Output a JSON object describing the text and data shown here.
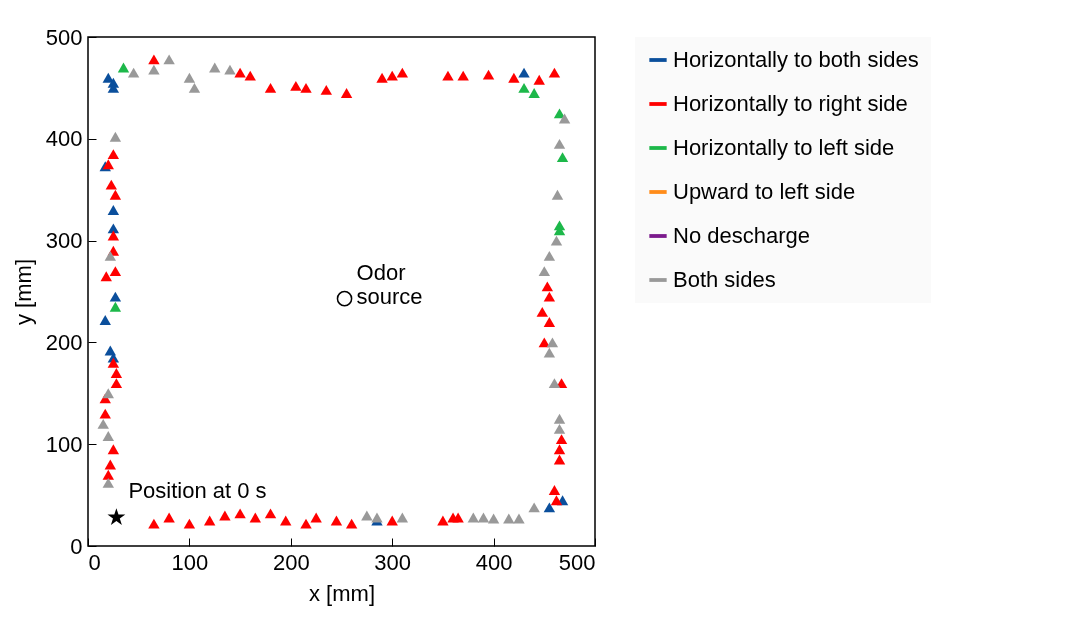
{
  "chart_data": {
    "type": "scatter",
    "xlabel": "x [mm]",
    "ylabel": "y [mm]",
    "xlim": [
      0,
      500
    ],
    "ylim": [
      0,
      500
    ],
    "xticks": [
      0,
      100,
      200,
      300,
      400,
      500
    ],
    "yticks": [
      0,
      100,
      200,
      300,
      400,
      500
    ],
    "grid": false,
    "legend": "right",
    "marker": "triangle",
    "series": [
      {
        "name": "Horizontally to both sides",
        "color": "#0b4f9c",
        "x": [
          20,
          25,
          25,
          430,
          455,
          468,
          285,
          17,
          25,
          25,
          17,
          22,
          27,
          25
        ],
        "values": [
          460,
          455,
          450,
          465,
          38,
          45,
          25,
          373,
          330,
          312,
          222,
          192,
          245,
          185
        ]
      },
      {
        "name": "Horizontally to right side",
        "color": "#ff0000",
        "x": [
          25,
          20,
          23,
          27,
          25,
          25,
          18,
          27,
          25,
          28,
          28,
          17,
          17,
          25,
          22,
          20,
          150,
          160,
          180,
          205,
          215,
          235,
          255,
          290,
          300,
          310,
          355,
          370,
          395,
          420,
          445,
          460,
          65,
          453,
          455,
          448,
          455,
          450,
          467,
          467,
          465,
          465,
          460,
          462,
          65,
          80,
          100,
          120,
          135,
          150,
          165,
          180,
          195,
          215,
          225,
          245,
          260,
          300,
          350,
          360,
          365
        ],
        "values": [
          385,
          375,
          355,
          345,
          305,
          290,
          265,
          270,
          180,
          170,
          160,
          145,
          130,
          95,
          80,
          70,
          465,
          462,
          450,
          452,
          450,
          448,
          445,
          460,
          462,
          465,
          462,
          462,
          463,
          460,
          458,
          465,
          478,
          255,
          245,
          230,
          220,
          200,
          160,
          105,
          95,
          85,
          55,
          45,
          22,
          28,
          22,
          25,
          30,
          32,
          28,
          32,
          25,
          22,
          28,
          25,
          22,
          25,
          25,
          28,
          28
        ]
      },
      {
        "name": "Horizontally to left side",
        "color": "#1db84a",
        "x": [
          35,
          27,
          430,
          440,
          465,
          468,
          465,
          465
        ],
        "values": [
          470,
          235,
          450,
          445,
          425,
          382,
          315,
          310
        ]
      },
      {
        "name": "Upward to  left side",
        "color": "#ff8c1a"
      },
      {
        "name": "No descharge",
        "color": "#7b1a8c"
      },
      {
        "name": "Both sides",
        "color": "#999999",
        "x": [
          45,
          65,
          80,
          100,
          105,
          125,
          140,
          27,
          22,
          20,
          15,
          20,
          20,
          470,
          465,
          463,
          462,
          455,
          450,
          458,
          455,
          460,
          465,
          465,
          275,
          310,
          380,
          390,
          400,
          415,
          425,
          440,
          285
        ],
        "values": [
          465,
          468,
          478,
          460,
          450,
          470,
          468,
          402,
          285,
          150,
          120,
          108,
          62,
          420,
          395,
          345,
          300,
          285,
          270,
          200,
          190,
          160,
          125,
          115,
          30,
          28,
          28,
          28,
          27,
          27,
          27,
          38,
          28
        ]
      },
      {
        "color": "#000000",
        "marker": "star",
        "x": [
          28
        ],
        "values": [
          28
        ]
      },
      {
        "color": "#000000",
        "marker": "circle",
        "x": [
          253
        ],
        "values": [
          243
        ]
      }
    ],
    "annotations": [
      {
        "text": "Position at 0 s",
        "x": 28,
        "y": 28
      },
      {
        "text": "Odor\nsource",
        "x": 253,
        "y": 243
      }
    ]
  }
}
